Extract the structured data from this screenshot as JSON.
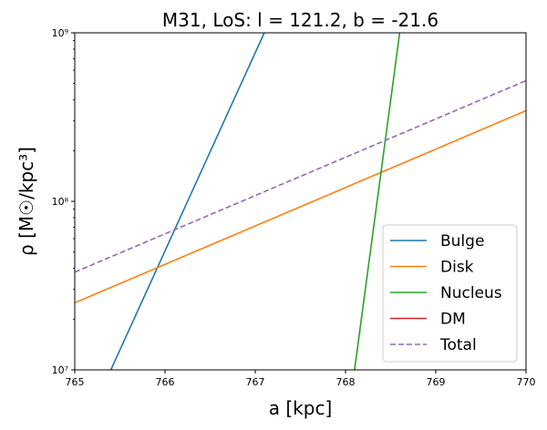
{
  "chart_data": {
    "type": "line",
    "title": "M31, LoS: l = 121.2, b = -21.6",
    "xlabel": "a [kpc]",
    "ylabel": "ρ [M☉/kpc³]",
    "xlim": [
      765,
      770
    ],
    "ylim": [
      10000000,
      1000000000
    ],
    "yscale": "log",
    "x_ticks": [
      765,
      766,
      767,
      768,
      769,
      770
    ],
    "x_tick_labels": [
      "765",
      "766",
      "767",
      "768",
      "769",
      "770"
    ],
    "y_ticks": [
      10000000,
      100000000,
      1000000000
    ],
    "y_tick_labels": [
      "10⁷",
      "10⁸",
      "10⁹"
    ],
    "grid": false,
    "legend_position": "lower-right",
    "series": [
      {
        "name": "Bulge",
        "color": "#1f77b4",
        "style": "solid",
        "x": [
          765.4,
          767.1
        ],
        "y": [
          10000000,
          1000000000
        ]
      },
      {
        "name": "Disk",
        "color": "#ff7f0e",
        "style": "solid",
        "x": [
          765,
          770
        ],
        "y": [
          25000000,
          345000000
        ]
      },
      {
        "name": "Nucleus",
        "color": "#2ca02c",
        "style": "solid",
        "x": [
          768.1,
          768.6
        ],
        "y": [
          10000000,
          1000000000
        ]
      },
      {
        "name": "DM",
        "color": "#d62728",
        "style": "solid",
        "x": [],
        "y": []
      },
      {
        "name": "Total",
        "color": "#9467bd",
        "style": "dashed",
        "x": [
          765,
          770
        ],
        "y": [
          38000000,
          520000000
        ]
      }
    ]
  }
}
